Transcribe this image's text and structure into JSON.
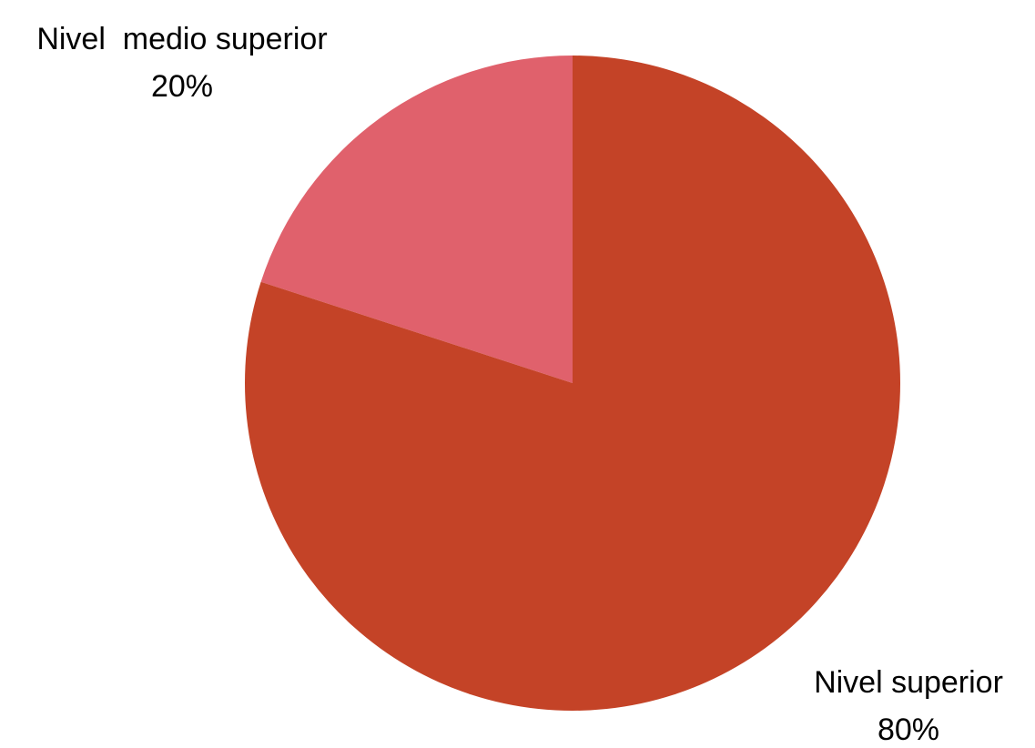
{
  "chart_data": {
    "type": "pie",
    "categories": [
      "Nivel  medio superior",
      "Nivel superior"
    ],
    "values": [
      20,
      80
    ],
    "value_labels": [
      "20%",
      "80%"
    ],
    "colors": [
      "#e0616c",
      "#c44327"
    ],
    "start_angle_deg": 0,
    "direction": "counterclockwise-from-top"
  }
}
